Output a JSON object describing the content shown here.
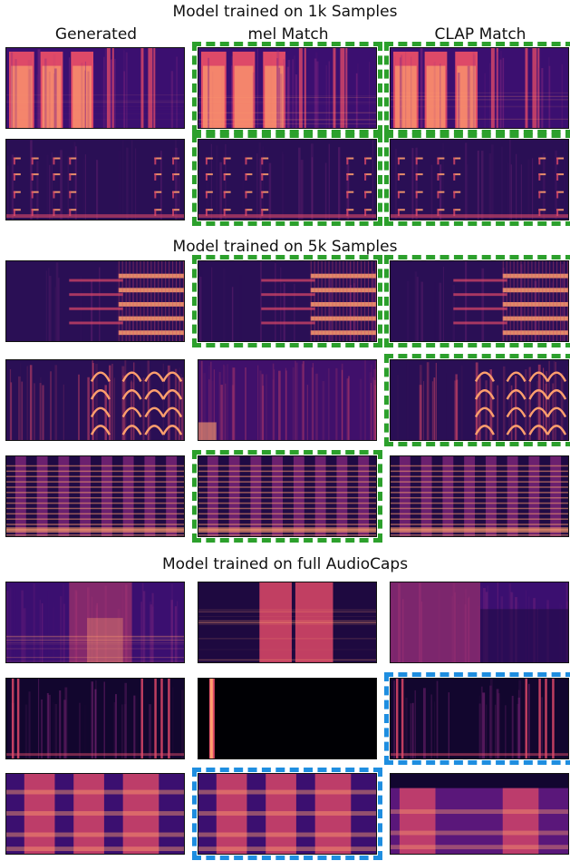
{
  "sections": [
    {
      "title": "Model trained on 1k Samples"
    },
    {
      "title": "Model trained on 5k Samples"
    },
    {
      "title": "Model trained on full AudioCaps"
    }
  ],
  "columns": {
    "generated": "Generated",
    "mel": "mel Match",
    "clap": "CLAP Match"
  },
  "legend": {
    "green": "#2ca02c",
    "blue": "#1f8ee0"
  },
  "colormap": [
    "#000004",
    "#3b0f70",
    "#8c2981",
    "#de4968",
    "#fe9f6d",
    "#fcfdbf"
  ],
  "rows": [
    {
      "section": 0,
      "patterns": [
        "bright_blocks",
        "bright_blocks",
        "bright_blocks"
      ],
      "highlight": [
        "none",
        "green",
        "green"
      ]
    },
    {
      "section": 0,
      "patterns": [
        "dots_grid",
        "dots_grid",
        "dots_grid"
      ],
      "highlight": [
        "none",
        "green",
        "green"
      ]
    },
    {
      "section": 1,
      "patterns": [
        "harmonic_rise",
        "harmonic_rise",
        "harmonic_rise"
      ],
      "highlight": [
        "none",
        "green",
        "green"
      ]
    },
    {
      "section": 1,
      "patterns": [
        "arches",
        "noise_verticals",
        "arches"
      ],
      "highlight": [
        "none",
        "none",
        "green"
      ]
    },
    {
      "section": 1,
      "patterns": [
        "harmonic_stripes",
        "harmonic_stripes",
        "harmonic_stripes"
      ],
      "highlight": [
        "none",
        "green",
        "none"
      ]
    },
    {
      "section": 2,
      "patterns": [
        "diffuse_center",
        "center_blocks",
        "diffuse_left"
      ],
      "highlight": [
        "none",
        "none",
        "none"
      ]
    },
    {
      "section": 2,
      "patterns": [
        "sparse_verticals",
        "single_line",
        "sparse_verticals"
      ],
      "highlight": [
        "none",
        "none",
        "blue"
      ]
    },
    {
      "section": 2,
      "patterns": [
        "band_blocks",
        "band_blocks",
        "band_blocks_dark_top"
      ],
      "highlight": [
        "none",
        "blue",
        "none"
      ]
    }
  ]
}
